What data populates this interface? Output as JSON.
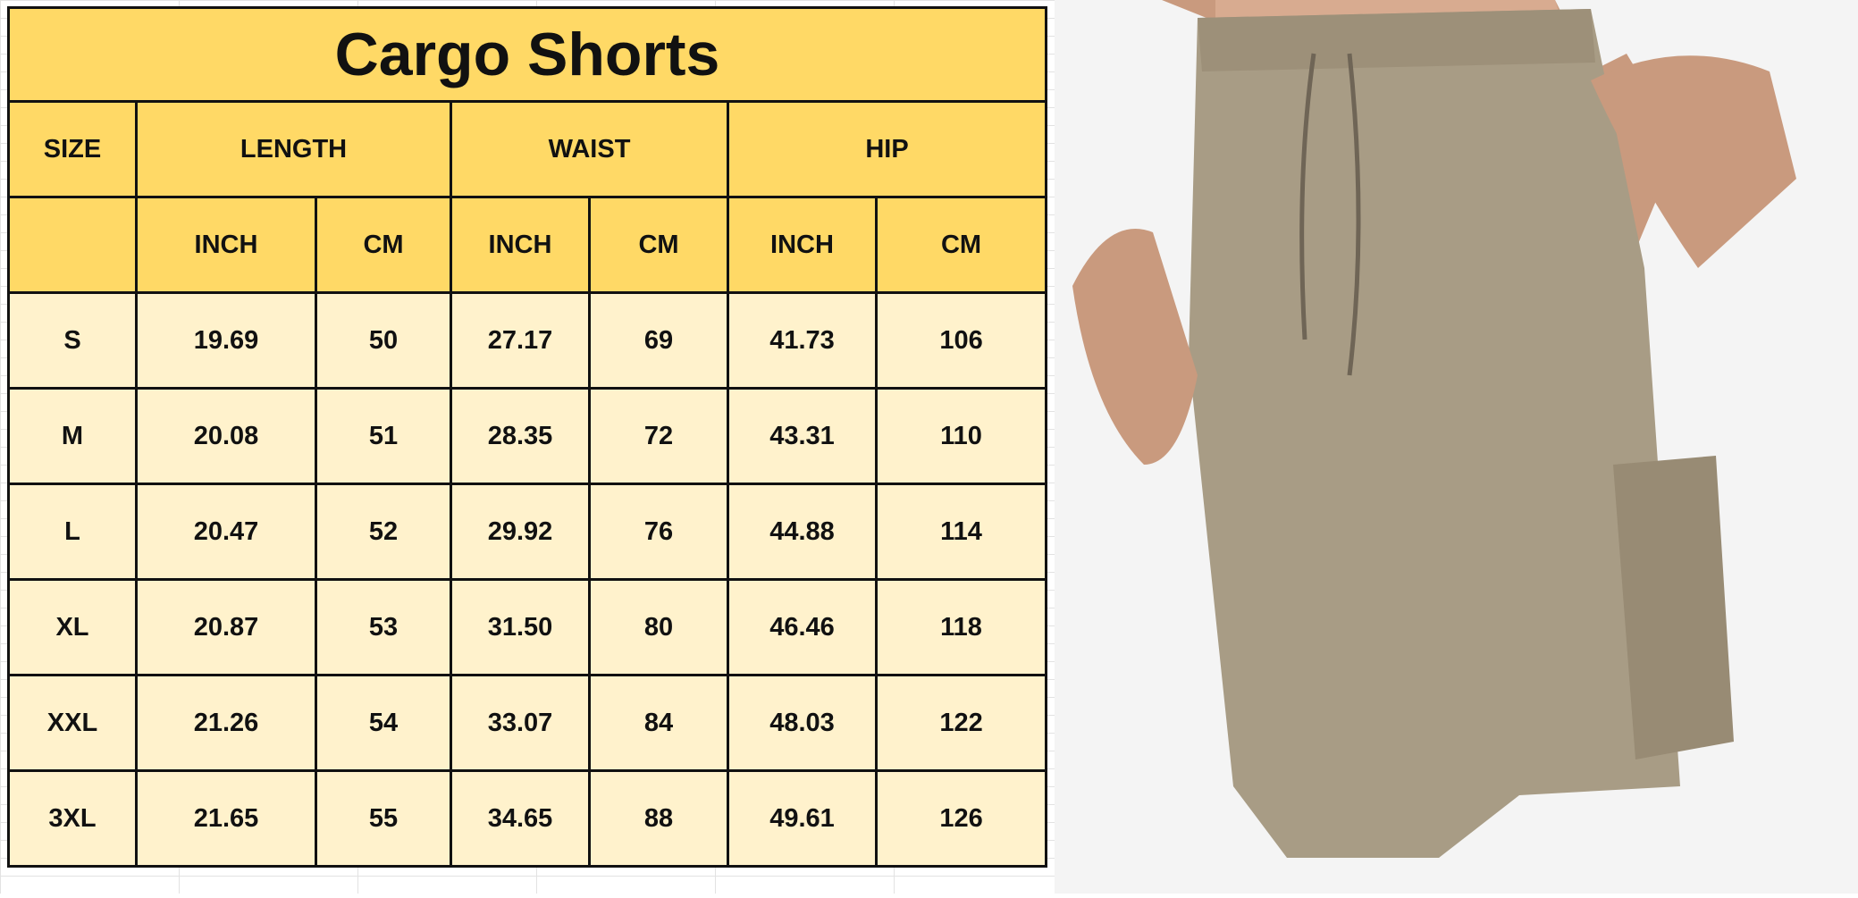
{
  "title": "Cargo Shorts",
  "header": {
    "size": "SIZE",
    "groups": [
      "LENGTH",
      "WAIST",
      "HIP"
    ],
    "units": [
      "INCH",
      "CM",
      "INCH",
      "CM",
      "INCH",
      "CM"
    ]
  },
  "rows": [
    [
      "S",
      "19.69",
      "50",
      "27.17",
      "69",
      "41.73",
      "106"
    ],
    [
      "M",
      "20.08",
      "51",
      "28.35",
      "72",
      "43.31",
      "110"
    ],
    [
      "L",
      "20.47",
      "52",
      "29.92",
      "76",
      "44.88",
      "114"
    ],
    [
      "XL",
      "20.87",
      "53",
      "31.50",
      "80",
      "46.46",
      "118"
    ],
    [
      "XXL",
      "21.26",
      "54",
      "33.07",
      "84",
      "48.03",
      "122"
    ],
    [
      "3XL",
      "21.65",
      "55",
      "34.65",
      "88",
      "49.61",
      "126"
    ]
  ],
  "colors": {
    "header": "#FFD966",
    "body": "#FFF2CC",
    "khaki": "#A89C85"
  }
}
